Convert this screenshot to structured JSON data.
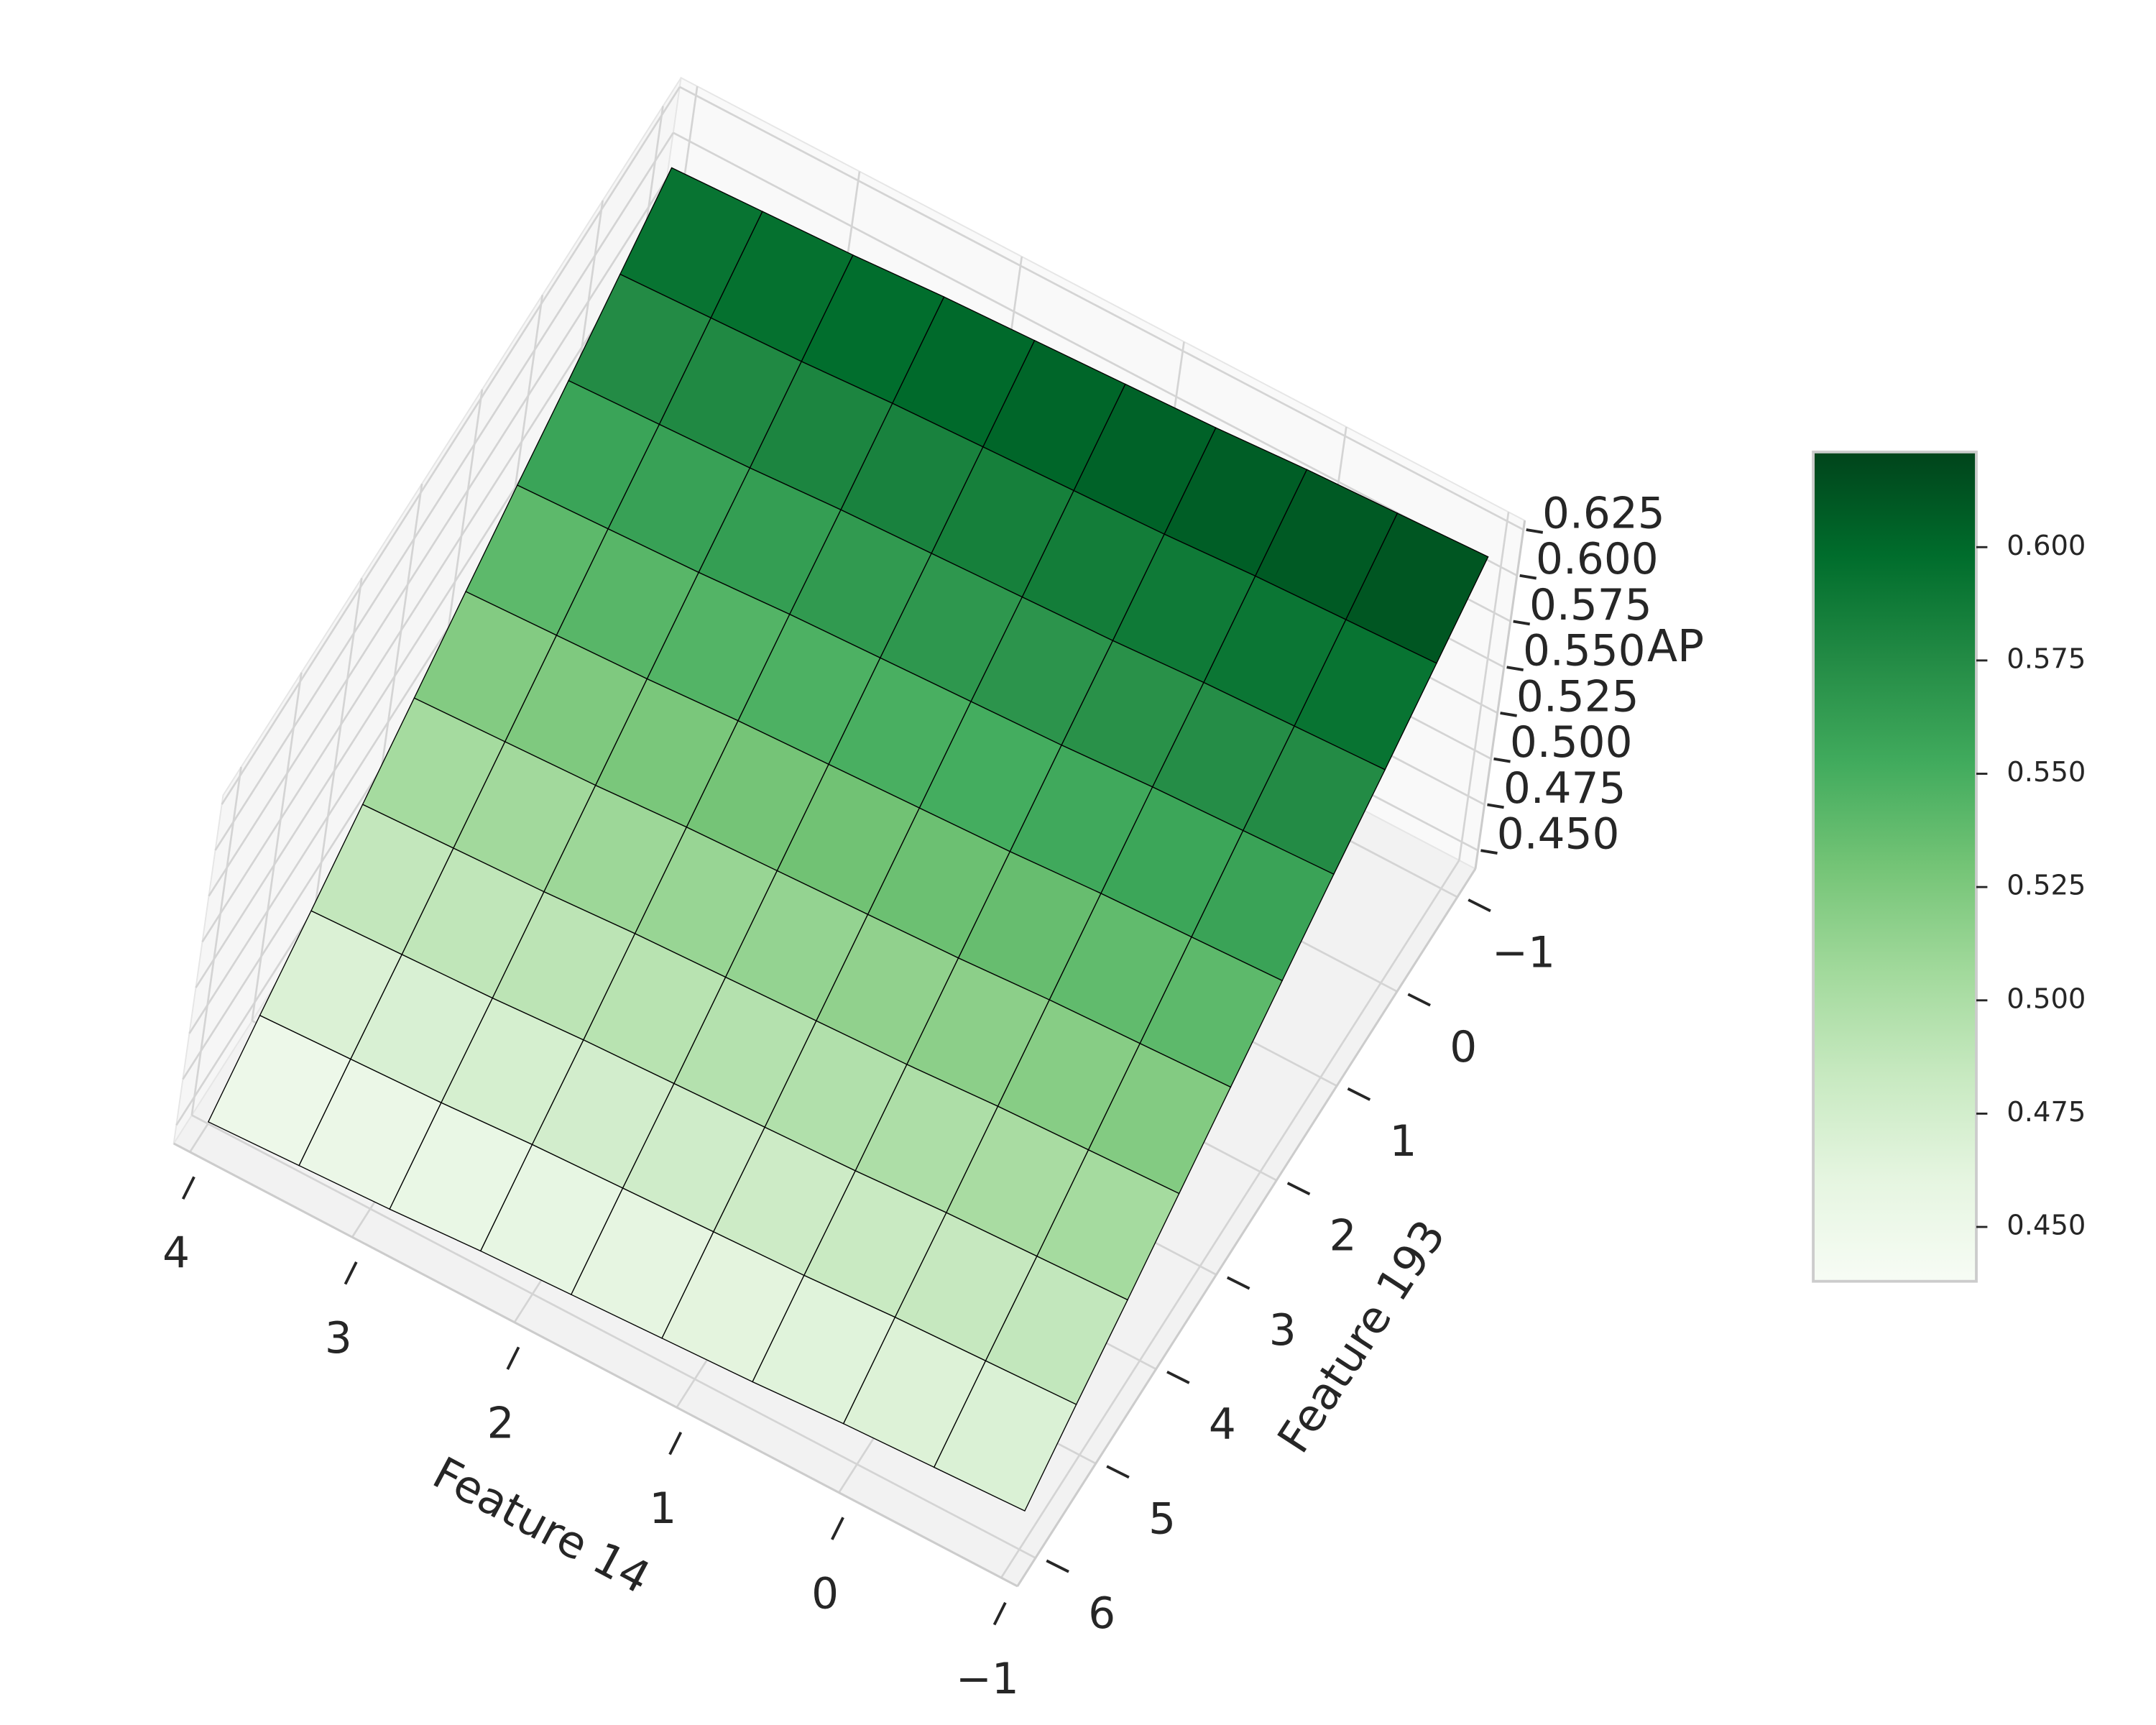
{
  "chart_data": {
    "type": "surface3d",
    "x_label": "Feature 14",
    "y_label": "Feature 193",
    "z_label": "AP",
    "x": [
      -1,
      -0.444,
      0.111,
      0.667,
      1.222,
      1.778,
      2.333,
      2.889,
      3.444,
      4
    ],
    "y": [
      -1,
      -0.222,
      0.556,
      1.333,
      2.111,
      2.889,
      3.667,
      4.444,
      5.222,
      6
    ],
    "z": [
      [
        0.621,
        0.619,
        0.617,
        0.614,
        0.612,
        0.61,
        0.608,
        0.605,
        0.603,
        0.601
      ],
      [
        0.603,
        0.601,
        0.599,
        0.596,
        0.594,
        0.592,
        0.59,
        0.587,
        0.585,
        0.583
      ],
      [
        0.585,
        0.583,
        0.581,
        0.578,
        0.576,
        0.574,
        0.572,
        0.569,
        0.567,
        0.565
      ],
      [
        0.568,
        0.566,
        0.564,
        0.561,
        0.559,
        0.557,
        0.555,
        0.552,
        0.55,
        0.548
      ],
      [
        0.55,
        0.548,
        0.546,
        0.543,
        0.541,
        0.539,
        0.537,
        0.534,
        0.532,
        0.53
      ],
      [
        0.532,
        0.53,
        0.528,
        0.525,
        0.523,
        0.521,
        0.519,
        0.516,
        0.514,
        0.512
      ],
      [
        0.514,
        0.512,
        0.51,
        0.507,
        0.505,
        0.503,
        0.501,
        0.498,
        0.496,
        0.494
      ],
      [
        0.496,
        0.494,
        0.492,
        0.489,
        0.487,
        0.485,
        0.483,
        0.48,
        0.478,
        0.476
      ],
      [
        0.479,
        0.477,
        0.475,
        0.472,
        0.47,
        0.468,
        0.466,
        0.463,
        0.461,
        0.459
      ],
      [
        0.461,
        0.459,
        0.457,
        0.454,
        0.452,
        0.45,
        0.448,
        0.445,
        0.443,
        0.441
      ]
    ],
    "colormap": "Greens",
    "xlim": [
      -1.1,
      4.1
    ],
    "ylim": [
      -1.3,
      6.3
    ],
    "zlim": [
      0.44,
      0.63
    ],
    "xticks": [
      {
        "value": -1,
        "label": "−1"
      },
      0,
      1,
      2,
      3,
      4
    ],
    "yticks": [
      {
        "value": -1,
        "label": "−1"
      },
      0,
      1,
      2,
      3,
      4,
      5,
      6
    ],
    "zticks": [
      {
        "value": 0.45,
        "label": "0.450"
      },
      {
        "value": 0.475,
        "label": "0.475"
      },
      {
        "value": 0.5,
        "label": "0.500"
      },
      {
        "value": 0.525,
        "label": "0.525"
      },
      {
        "value": 0.55,
        "label": "0.550"
      },
      {
        "value": 0.575,
        "label": "0.575"
      },
      {
        "value": 0.6,
        "label": "0.600"
      },
      0.625
    ],
    "colorbar": {
      "clim": [
        0.438,
        0.621
      ],
      "ticks": [
        {
          "value": 0.45,
          "label": "0.450"
        },
        {
          "value": 0.475,
          "label": "0.475"
        },
        {
          "value": 0.5,
          "label": "0.500"
        },
        {
          "value": 0.525,
          "label": "0.525"
        },
        {
          "value": 0.55,
          "label": "0.550"
        },
        {
          "value": 0.575,
          "label": "0.575"
        },
        {
          "value": 0.6,
          "label": "0.600"
        }
      ]
    }
  }
}
